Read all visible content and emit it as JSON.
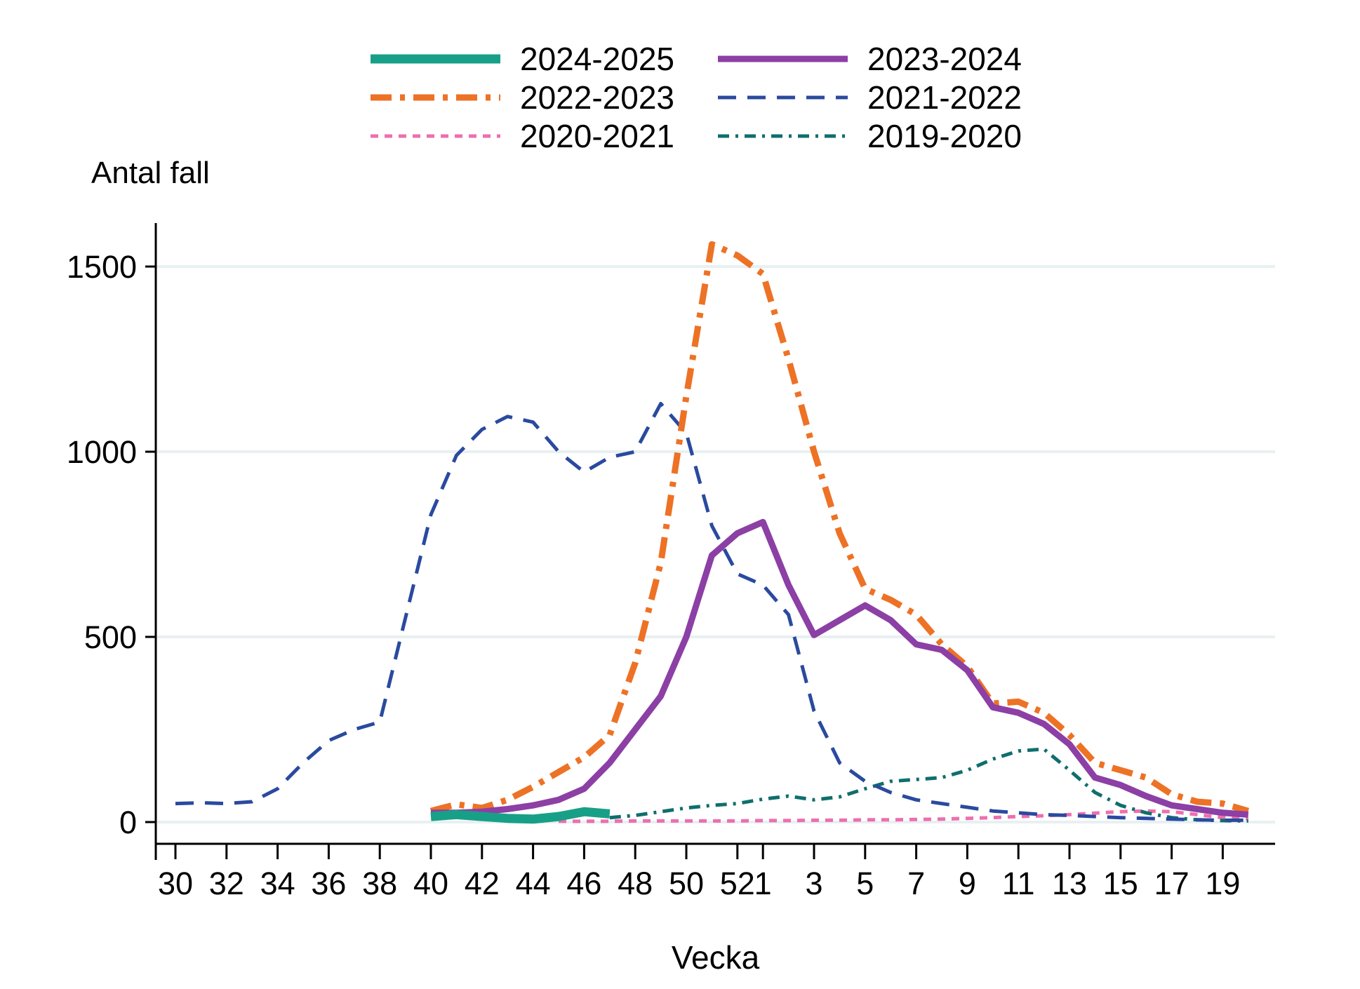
{
  "figure": {
    "background": "#ffffff",
    "grid_color": "#e8f0f2",
    "axis_color": "#000000",
    "text_color": "#000000"
  },
  "chart_data": {
    "type": "line",
    "title": "",
    "ylabel": "Antal fall",
    "xlabel": "Vecka",
    "ylim": [
      0,
      1600
    ],
    "y_ticks": [
      0,
      500,
      1000,
      1500
    ],
    "grid": true,
    "legend_position": "top",
    "x_categories": [
      "30",
      "31",
      "32",
      "33",
      "34",
      "35",
      "36",
      "37",
      "38",
      "39",
      "40",
      "41",
      "42",
      "43",
      "44",
      "45",
      "46",
      "47",
      "48",
      "49",
      "50",
      "51",
      "52",
      "1",
      "2",
      "3",
      "4",
      "5",
      "6",
      "7",
      "8",
      "9",
      "10",
      "11",
      "12",
      "13",
      "14",
      "15",
      "16",
      "17",
      "18",
      "19",
      "20"
    ],
    "x_tick_indices": [
      0,
      2,
      4,
      6,
      8,
      10,
      12,
      14,
      16,
      18,
      20,
      22,
      23,
      25,
      27,
      29,
      31,
      33,
      35,
      37,
      39,
      41
    ],
    "x_tick_labels": [
      "30",
      "32",
      "34",
      "36",
      "38",
      "40",
      "42",
      "44",
      "46",
      "48",
      "50",
      "52",
      "1",
      "3",
      "5",
      "7",
      "9",
      "11",
      "13",
      "15",
      "17",
      "19"
    ],
    "series": [
      {
        "name": "2021-2022",
        "color": "#2a4a9f",
        "pattern": "long-dash",
        "width": 5,
        "start_index": 0,
        "values": [
          50,
          52,
          50,
          55,
          90,
          160,
          220,
          250,
          270,
          550,
          830,
          990,
          1060,
          1095,
          1080,
          1000,
          945,
          985,
          1000,
          1130,
          1050,
          800,
          670,
          640,
          560,
          300,
          160,
          110,
          80,
          60,
          50,
          40,
          30,
          25,
          20,
          18,
          15,
          12,
          10,
          8,
          6,
          5,
          5
        ]
      },
      {
        "name": "2020-2021",
        "color": "#ed6fae",
        "pattern": "dot",
        "width": 5,
        "start_index": 15,
        "values": [
          2,
          2,
          2,
          3,
          3,
          3,
          3,
          3,
          4,
          4,
          5,
          5,
          6,
          6,
          7,
          8,
          10,
          12,
          15,
          17,
          20,
          24,
          28,
          30,
          28,
          20,
          12,
          9
        ]
      },
      {
        "name": "2019-2020",
        "color": "#0f6f6d",
        "pattern": "short-dash-dot",
        "width": 5,
        "start_index": 17,
        "values": [
          12,
          18,
          28,
          38,
          45,
          50,
          62,
          70,
          60,
          68,
          90,
          110,
          115,
          120,
          140,
          170,
          192,
          197,
          140,
          80,
          45,
          25,
          12,
          6,
          4,
          3
        ]
      },
      {
        "name": "2022-2023",
        "color": "#ed7225",
        "pattern": "dash-dot",
        "width": 9,
        "start_index": 10,
        "values": [
          30,
          48,
          38,
          60,
          95,
          135,
          175,
          235,
          430,
          700,
          1150,
          1560,
          1530,
          1480,
          1250,
          1000,
          780,
          630,
          600,
          560,
          480,
          420,
          320,
          325,
          295,
          235,
          160,
          140,
          120,
          75,
          55,
          50,
          30
        ]
      },
      {
        "name": "2023-2024",
        "color": "#8c3fa5",
        "pattern": "solid",
        "width": 9,
        "start_index": 10,
        "values": [
          25,
          25,
          28,
          35,
          45,
          60,
          90,
          160,
          250,
          340,
          500,
          720,
          780,
          810,
          640,
          505,
          545,
          585,
          545,
          480,
          465,
          410,
          310,
          295,
          265,
          210,
          120,
          100,
          70,
          45,
          35,
          25,
          20
        ]
      },
      {
        "name": "2024-2025",
        "color": "#17a087",
        "pattern": "solid",
        "width": 13,
        "start_index": 10,
        "values": [
          15,
          20,
          15,
          10,
          8,
          15,
          28,
          22
        ]
      }
    ]
  },
  "legend": {
    "items": [
      {
        "label": "2024-2025",
        "series": "2024-2025"
      },
      {
        "label": "2023-2024",
        "series": "2023-2024"
      },
      {
        "label": "2022-2023",
        "series": "2022-2023"
      },
      {
        "label": "2021-2022",
        "series": "2021-2022"
      },
      {
        "label": "2020-2021",
        "series": "2020-2021"
      },
      {
        "label": "2019-2020",
        "series": "2019-2020"
      }
    ]
  }
}
